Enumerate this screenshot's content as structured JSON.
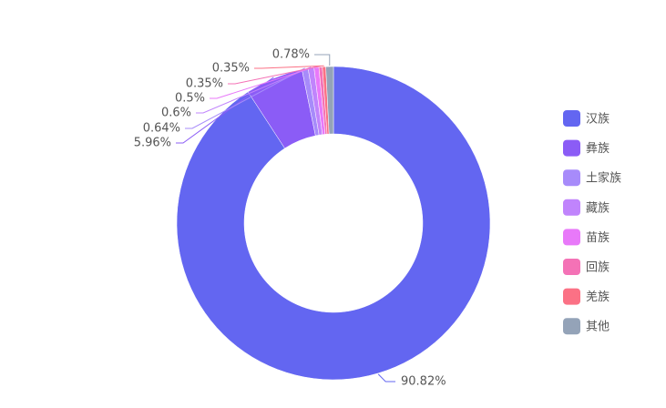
{
  "chart_data": {
    "type": "donut",
    "categories": [
      "汉族",
      "彝族",
      "土家族",
      "藏族",
      "苗族",
      "回族",
      "羌族",
      "其他"
    ],
    "values": [
      90.82,
      5.96,
      0.64,
      0.6,
      0.5,
      0.35,
      0.35,
      0.78
    ],
    "value_labels": [
      "90.82%",
      "5.96%",
      "0.64%",
      "0.6%",
      "0.5%",
      "0.35%",
      "0.35%",
      "0.78%"
    ],
    "colors": [
      "#6366f1",
      "#8b5cf6",
      "#a78bfa",
      "#c084fc",
      "#e879f9",
      "#f472b6",
      "#fb7185",
      "#94a3b8"
    ],
    "legend": "right"
  }
}
